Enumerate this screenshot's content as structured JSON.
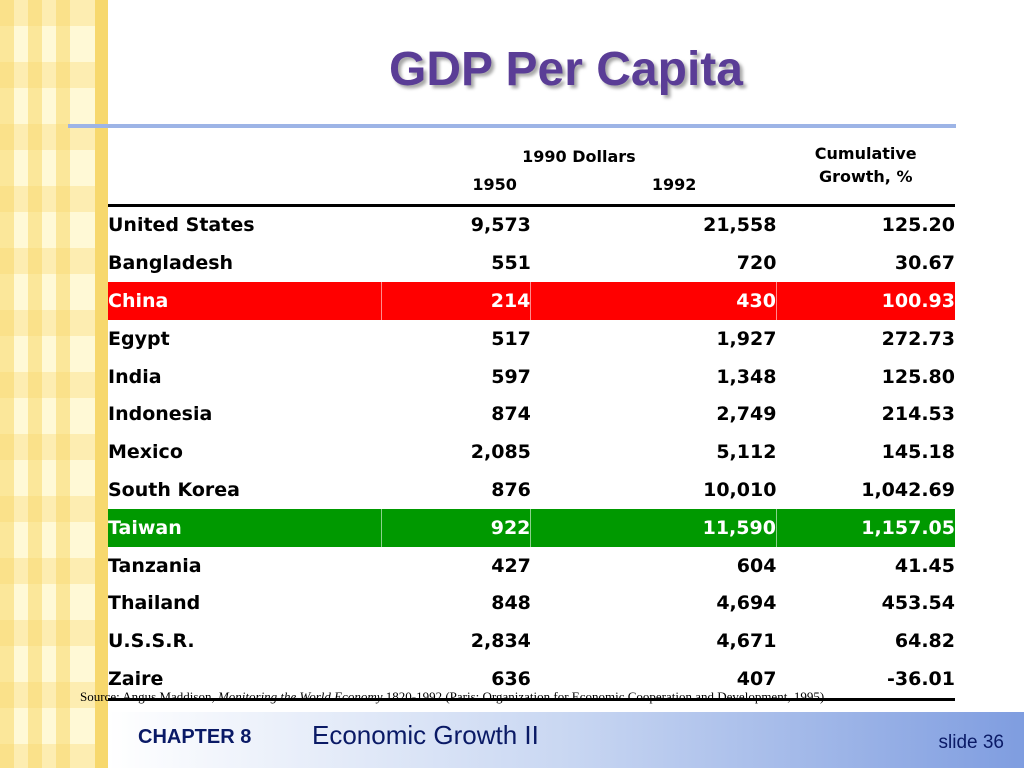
{
  "title": "GDP Per Capita",
  "table": {
    "group_header": "1990 Dollars",
    "col_1950": "1950",
    "col_1992": "1992",
    "growth_header": [
      "Cumulative",
      "Growth, %"
    ],
    "highlight_colors": {
      "China": "#ff0000",
      "Taiwan": "#009900"
    },
    "rows": [
      {
        "country": "United States",
        "y1950": "9,573",
        "y1992": "21,558",
        "growth": "125.20"
      },
      {
        "country": "Bangladesh",
        "y1950": "551",
        "y1992": "720",
        "growth": "30.67"
      },
      {
        "country": "China",
        "y1950": "214",
        "y1992": "430",
        "growth": "100.93"
      },
      {
        "country": "Egypt",
        "y1950": "517",
        "y1992": "1,927",
        "growth": "272.73"
      },
      {
        "country": "India",
        "y1950": "597",
        "y1992": "1,348",
        "growth": "125.80"
      },
      {
        "country": "Indonesia",
        "y1950": "874",
        "y1992": "2,749",
        "growth": "214.53"
      },
      {
        "country": "Mexico",
        "y1950": "2,085",
        "y1992": "5,112",
        "growth": "145.18"
      },
      {
        "country": "South Korea",
        "y1950": "876",
        "y1992": "10,010",
        "growth": "1,042.69"
      },
      {
        "country": "Taiwan",
        "y1950": "922",
        "y1992": "11,590",
        "growth": "1,157.05"
      },
      {
        "country": "Tanzania",
        "y1950": "427",
        "y1992": "604",
        "growth": "41.45"
      },
      {
        "country": "Thailand",
        "y1950": "848",
        "y1992": "4,694",
        "growth": "453.54"
      },
      {
        "country": "U.S.S.R.",
        "y1950": "2,834",
        "y1992": "4,671",
        "growth": "64.82"
      },
      {
        "country": "Zaire",
        "y1950": "636",
        "y1992": "407",
        "growth": "-36.01"
      }
    ]
  },
  "source": {
    "prefix": "Source: Angus Maddison, ",
    "book": "Monitoring the World Economy",
    "suffix": " 1820-1992 (Paris: Organization for Economic Cooperation and Development, 1995)"
  },
  "footer": {
    "chapter": "CHAPTER 8",
    "chapter_title": "Economic Growth II",
    "slide": "slide 36"
  }
}
